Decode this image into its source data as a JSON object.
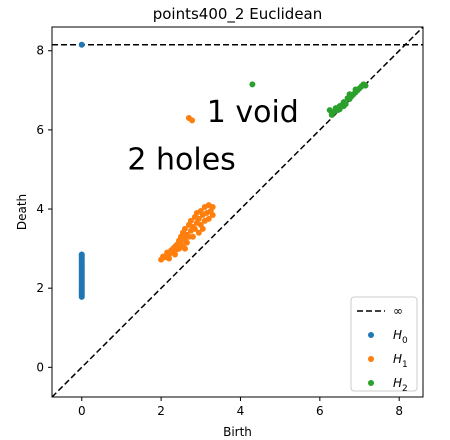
{
  "chart_data": {
    "type": "scatter",
    "title": "points400_2 Euclidean",
    "xlabel": "Birth",
    "ylabel": "Death",
    "xlim": [
      -0.75,
      8.6
    ],
    "ylim": [
      -0.75,
      8.6
    ],
    "xticks": [
      0,
      2,
      4,
      6,
      8
    ],
    "yticks": [
      0,
      2,
      4,
      6,
      8
    ],
    "grid": false,
    "legend_position": "lower-right",
    "infinity": {
      "label": "∞",
      "y": 8.15
    },
    "annotations": [
      {
        "text": "1 void",
        "x": 3.15,
        "y": 6.2
      },
      {
        "text": "2 holes",
        "x": 1.15,
        "y": 5.0
      }
    ],
    "series": [
      {
        "name": "H",
        "subscript": "0",
        "color": "#1f77b4",
        "points": [
          [
            0,
            8.15
          ],
          [
            0,
            1.78
          ],
          [
            0,
            1.82
          ],
          [
            0,
            1.86
          ],
          [
            0,
            1.9
          ],
          [
            0,
            1.94
          ],
          [
            0,
            1.98
          ],
          [
            0,
            2.02
          ],
          [
            0,
            2.06
          ],
          [
            0,
            2.1
          ],
          [
            0,
            2.14
          ],
          [
            0,
            2.18
          ],
          [
            0,
            2.22
          ],
          [
            0,
            2.26
          ],
          [
            0,
            2.3
          ],
          [
            0,
            2.34
          ],
          [
            0,
            2.38
          ],
          [
            0,
            2.42
          ],
          [
            0,
            2.46
          ],
          [
            0,
            2.5
          ],
          [
            0,
            2.54
          ],
          [
            0,
            2.58
          ],
          [
            0,
            2.62
          ],
          [
            0,
            2.66
          ],
          [
            0,
            2.7
          ],
          [
            0,
            2.74
          ],
          [
            0,
            2.78
          ],
          [
            0,
            2.82
          ],
          [
            0,
            2.85
          ]
        ]
      },
      {
        "name": "H",
        "subscript": "1",
        "color": "#ff7f0e",
        "points": [
          [
            2.7,
            6.3
          ],
          [
            2.78,
            6.24
          ],
          [
            2.0,
            2.72
          ],
          [
            2.05,
            2.8
          ],
          [
            2.1,
            2.78
          ],
          [
            2.15,
            2.9
          ],
          [
            2.2,
            2.85
          ],
          [
            2.25,
            2.95
          ],
          [
            2.3,
            3.0
          ],
          [
            2.3,
            2.9
          ],
          [
            2.35,
            3.05
          ],
          [
            2.4,
            3.1
          ],
          [
            2.4,
            2.98
          ],
          [
            2.45,
            3.2
          ],
          [
            2.5,
            3.15
          ],
          [
            2.5,
            3.3
          ],
          [
            2.55,
            3.05
          ],
          [
            2.55,
            3.4
          ],
          [
            2.6,
            3.25
          ],
          [
            2.6,
            3.5
          ],
          [
            2.65,
            3.35
          ],
          [
            2.65,
            3.15
          ],
          [
            2.7,
            3.6
          ],
          [
            2.7,
            3.3
          ],
          [
            2.75,
            3.45
          ],
          [
            2.75,
            3.7
          ],
          [
            2.8,
            3.55
          ],
          [
            2.8,
            3.3
          ],
          [
            2.85,
            3.8
          ],
          [
            2.85,
            3.5
          ],
          [
            2.9,
            3.65
          ],
          [
            2.9,
            3.9
          ],
          [
            2.95,
            3.4
          ],
          [
            2.95,
            3.75
          ],
          [
            3.0,
            3.6
          ],
          [
            3.0,
            3.95
          ],
          [
            3.05,
            3.85
          ],
          [
            3.05,
            3.5
          ],
          [
            3.1,
            3.7
          ],
          [
            3.1,
            4.05
          ],
          [
            3.15,
            3.9
          ],
          [
            3.2,
            3.75
          ],
          [
            3.2,
            4.1
          ],
          [
            3.25,
            3.95
          ],
          [
            3.3,
            4.05
          ],
          [
            3.3,
            3.85
          ],
          [
            2.2,
            2.75
          ],
          [
            2.35,
            2.85
          ],
          [
            2.6,
            3.0
          ],
          [
            2.45,
            3.0
          ]
        ]
      },
      {
        "name": "H",
        "subscript": "2",
        "color": "#2ca02c",
        "points": [
          [
            4.3,
            7.15
          ],
          [
            6.25,
            6.5
          ],
          [
            6.3,
            6.38
          ],
          [
            6.35,
            6.45
          ],
          [
            6.4,
            6.55
          ],
          [
            6.45,
            6.5
          ],
          [
            6.5,
            6.6
          ],
          [
            6.55,
            6.62
          ],
          [
            6.6,
            6.7
          ],
          [
            6.65,
            6.65
          ],
          [
            6.7,
            6.8
          ],
          [
            6.75,
            6.78
          ],
          [
            6.8,
            6.85
          ],
          [
            6.85,
            6.9
          ],
          [
            6.9,
            6.95
          ],
          [
            6.95,
            7.0
          ],
          [
            7.0,
            7.05
          ],
          [
            7.05,
            7.1
          ],
          [
            7.1,
            7.15
          ],
          [
            7.15,
            7.12
          ],
          [
            6.5,
            6.52
          ],
          [
            6.6,
            6.6
          ],
          [
            6.75,
            6.9
          ],
          [
            6.9,
            7.02
          ]
        ]
      }
    ]
  }
}
